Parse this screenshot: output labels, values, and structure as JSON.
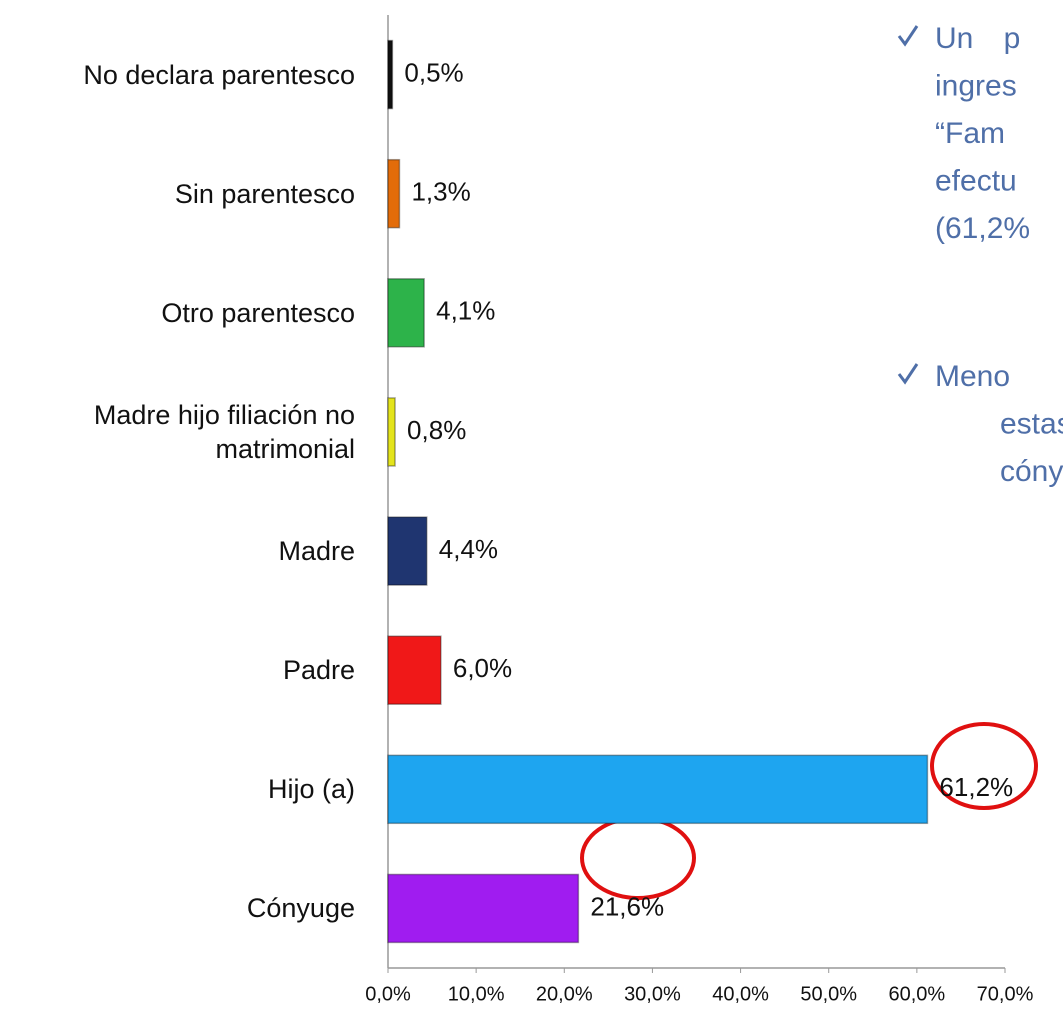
{
  "chart_data": {
    "type": "bar",
    "orientation": "horizontal",
    "categories": [
      "No declara parentesco",
      "Sin parentesco",
      "Otro parentesco",
      "Madre hijo filiación no matrimonial",
      "Madre",
      "Padre",
      "Hijo (a)",
      "Cónyuge"
    ],
    "values": [
      0.5,
      1.3,
      4.1,
      0.8,
      4.4,
      6.0,
      61.2,
      21.6
    ],
    "value_labels": [
      "0,5%",
      "1,3%",
      "4,1%",
      "0,8%",
      "4,4%",
      "6,0%",
      "61,2%",
      "21,6%"
    ],
    "colors": [
      "#111111",
      "#e36c09",
      "#2db34a",
      "#e4e41c",
      "#1f3570",
      "#f01818",
      "#1ea5f0",
      "#a01cf0"
    ],
    "xlim": [
      0,
      70
    ],
    "xticks": [
      {
        "value": 0,
        "label": "0,0%"
      },
      {
        "value": 10,
        "label": "10,0%"
      },
      {
        "value": 20,
        "label": "20,0%"
      },
      {
        "value": 30,
        "label": "30,0%"
      },
      {
        "value": 40,
        "label": "40,0%"
      },
      {
        "value": 50,
        "label": "50,0%"
      },
      {
        "value": 60,
        "label": "60,0%"
      },
      {
        "value": 70,
        "label": "70,0%"
      }
    ],
    "grid": false,
    "annotations": [
      [
        "Un p",
        "ingres",
        "“Fam",
        "efectu",
        "(61,2%"
      ],
      [
        "Meno",
        "estas",
        "cóny"
      ]
    ]
  }
}
